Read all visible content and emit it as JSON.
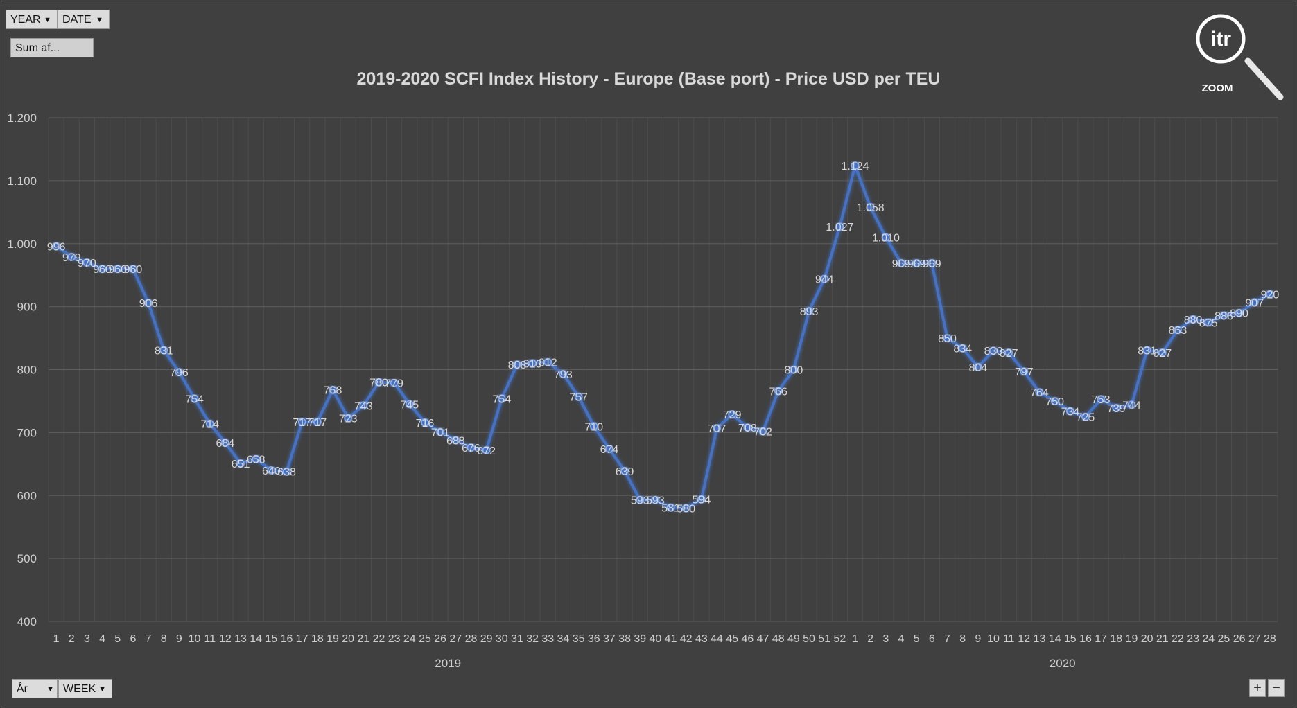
{
  "filters": {
    "year_label": "YEAR",
    "date_label": "DATE",
    "sum_label": "Sum af...",
    "ar_label": "År",
    "week_label": "WEEK"
  },
  "logo": {
    "text": "itr",
    "caption": "ZOOM"
  },
  "zoom_controls": {
    "plus": "+",
    "minus": "−"
  },
  "colors": {
    "background": "#404040",
    "line": "#4472C4",
    "grid": "#595959",
    "text": "#d9d9d9"
  },
  "chart_data": {
    "type": "line",
    "title": "2019-2020 SCFI Index History - Europe (Base port) - Price USD per TEU",
    "xlabel": "",
    "ylabel": "",
    "ylim": [
      400,
      1200
    ],
    "yticks": [
      "400",
      "500",
      "600",
      "700",
      "800",
      "900",
      "1.000",
      "1.100",
      "1.200"
    ],
    "grid": true,
    "legend": "none",
    "groups": [
      {
        "label": "2019",
        "categories": [
          "1",
          "2",
          "3",
          "4",
          "5",
          "6",
          "7",
          "8",
          "9",
          "10",
          "11",
          "12",
          "13",
          "14",
          "15",
          "16",
          "17",
          "18",
          "19",
          "20",
          "21",
          "22",
          "23",
          "24",
          "25",
          "26",
          "27",
          "28",
          "29",
          "30",
          "31",
          "32",
          "33",
          "34",
          "35",
          "36",
          "37",
          "38",
          "39",
          "40",
          "41",
          "42",
          "43",
          "44",
          "45",
          "46",
          "47",
          "48",
          "49",
          "50",
          "51",
          "52"
        ]
      },
      {
        "label": "2020",
        "categories": [
          "1",
          "2",
          "3",
          "4",
          "5",
          "6",
          "7",
          "8",
          "9",
          "10",
          "11",
          "12",
          "13",
          "14",
          "15",
          "16",
          "17",
          "18",
          "19",
          "20",
          "21",
          "22",
          "23",
          "24",
          "25",
          "26",
          "27",
          "28"
        ]
      }
    ],
    "series": [
      {
        "values": [
          996,
          979,
          970,
          960,
          960,
          960,
          906,
          831,
          796,
          754,
          714,
          684,
          651,
          658,
          640,
          638,
          717,
          717,
          768,
          723,
          743,
          780,
          779,
          745,
          716,
          701,
          688,
          676,
          672,
          754,
          808,
          810,
          812,
          793,
          757,
          710,
          674,
          639,
          593,
          593,
          581,
          580,
          594,
          707,
          729,
          708,
          702,
          766,
          800,
          893,
          944,
          1027,
          1124,
          1058,
          1010,
          969,
          969,
          969,
          850,
          834,
          804,
          830,
          827,
          797,
          764,
          750,
          734,
          725,
          753,
          739,
          744,
          831,
          827,
          863,
          880,
          875,
          886,
          890,
          907,
          920
        ],
        "labels": [
          "996",
          "979",
          "970",
          "960",
          "960",
          "960",
          "906",
          "831",
          "796",
          "754",
          "714",
          "684",
          "651",
          "658",
          "640",
          "638",
          "717",
          "717",
          "768",
          "723",
          "743",
          "780",
          "779",
          "745",
          "716",
          "701",
          "688",
          "676",
          "672",
          "754",
          "808",
          "810",
          "812",
          "793",
          "757",
          "710",
          "674",
          "639",
          "593",
          "593",
          "581",
          "580",
          "594",
          "707",
          "729",
          "708",
          "702",
          "766",
          "800",
          "893",
          "944",
          "1.027",
          "1.124",
          "1.058",
          "1.010",
          "969",
          "969",
          "969",
          "850",
          "834",
          "804",
          "830",
          "827",
          "797",
          "764",
          "750",
          "734",
          "725",
          "753",
          "739",
          "744",
          "831",
          "827",
          "863",
          "880",
          "875",
          "886",
          "890",
          "907",
          "920"
        ]
      }
    ]
  }
}
